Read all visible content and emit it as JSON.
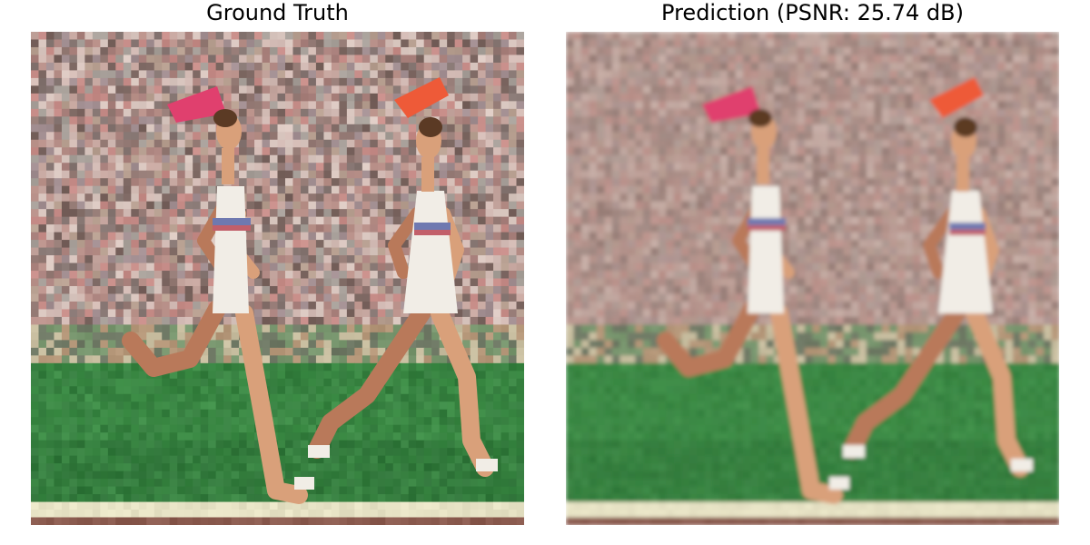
{
  "figure": {
    "left_title": "Ground Truth",
    "right_title": "Prediction (PSNR: 25.74 dB)"
  },
  "scene": {
    "subject": "two runners on a track",
    "colors": {
      "crowd_base": "#b4978f",
      "crowd_dark": "#6e5a55",
      "grass": "#3f8f48",
      "grass_dark": "#2c6e36",
      "lane_line": "#e6e2c4",
      "track": "#8a5a4e",
      "skin": "#d9a07a",
      "skin_shadow": "#b9795a",
      "kit_white": "#f1ede6",
      "kit_blue": "#6f79b0",
      "kit_red": "#c25f6a",
      "hair": "#5b3a24",
      "flag_left": "#e0406e",
      "flag_right": "#ee5a38"
    }
  }
}
